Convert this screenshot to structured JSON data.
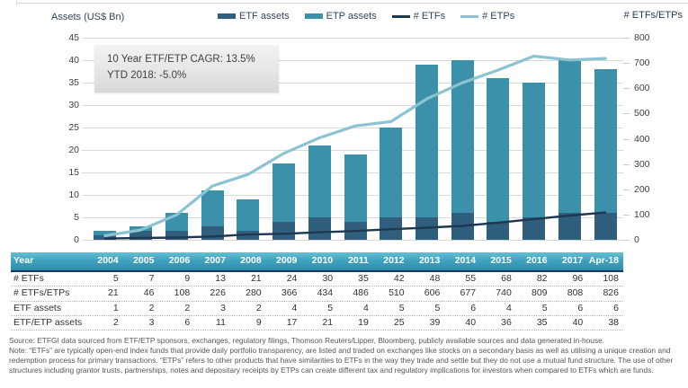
{
  "header": {
    "left_axis_title": "Assets (US$ Bn)",
    "right_axis_title": "# ETFs/ETPs",
    "legend": [
      {
        "label": "ETF assets",
        "type": "bar",
        "color": "#305f7e"
      },
      {
        "label": "ETP assets",
        "type": "bar",
        "color": "#3b91a9"
      },
      {
        "label": "# ETFs",
        "type": "line",
        "color": "#1e3852"
      },
      {
        "label": "# ETPs",
        "type": "line",
        "color": "#8cc3d2"
      }
    ]
  },
  "annotation": {
    "line1": "10 Year ETF/ETP CAGR: 13.5%",
    "line2": "YTD 2018: -5.0%"
  },
  "chart_data": {
    "type": "combo-stacked-bar-and-line",
    "title": "",
    "categories": [
      "2004",
      "2005",
      "2006",
      "2007",
      "2008",
      "2009",
      "2010",
      "2011",
      "2012",
      "2013",
      "2014",
      "2015",
      "2016",
      "2017",
      "Apr-18"
    ],
    "left_axis": {
      "title": "Assets (US$ Bn)",
      "min": 0,
      "max": 45,
      "step": 5
    },
    "right_axis": {
      "title": "# ETFs/ETPs",
      "min": 0,
      "max": 800,
      "step": 100
    },
    "grid": "horizontal-on",
    "legend_position": "top",
    "series": [
      {
        "name": "ETF assets",
        "type": "bar",
        "axis": "left",
        "stack": true,
        "color": "#305f7e",
        "values": [
          1,
          2,
          2,
          3,
          2,
          4,
          5,
          4,
          5,
          5,
          6,
          4,
          5,
          6,
          6
        ]
      },
      {
        "name": "ETP assets",
        "type": "bar",
        "axis": "left",
        "stack": true,
        "color": "#3b91a9",
        "values": [
          1,
          1,
          4,
          8,
          7,
          13,
          16,
          15,
          20,
          34,
          34,
          32,
          30,
          34,
          32
        ]
      },
      {
        "name": "# ETFs",
        "type": "line",
        "axis": "right",
        "color": "#1e3852",
        "width": 2.4,
        "values": [
          5,
          7,
          9,
          13,
          21,
          24,
          30,
          35,
          42,
          48,
          55,
          68,
          82,
          96,
          108
        ]
      },
      {
        "name": "# ETPs",
        "type": "line",
        "axis": "right",
        "color": "#8cc3d2",
        "width": 3.2,
        "values": [
          16,
          39,
          99,
          213,
          259,
          342,
          404,
          451,
          468,
          558,
          622,
          672,
          727,
          712,
          718
        ]
      }
    ],
    "stacked_bar_totals_note": "ETF assets + ETP assets = ETF/ETP assets totals shown in table",
    "bar_totals": [
      2,
      3,
      6,
      11,
      9,
      17,
      21,
      19,
      25,
      39,
      40,
      36,
      35,
      40,
      38
    ]
  },
  "table": {
    "header": [
      "Year",
      "2004",
      "2005",
      "2006",
      "2007",
      "2008",
      "2009",
      "2010",
      "2011",
      "2012",
      "2013",
      "2014",
      "2015",
      "2016",
      "2017",
      "Apr-18"
    ],
    "rows": [
      {
        "label": "# ETFs",
        "values": [
          5,
          7,
          9,
          13,
          21,
          24,
          30,
          35,
          42,
          48,
          55,
          68,
          82,
          96,
          108
        ]
      },
      {
        "label": "# ETFs/ETPs",
        "values": [
          21,
          46,
          108,
          226,
          280,
          366,
          434,
          486,
          510,
          606,
          677,
          740,
          809,
          808,
          826
        ]
      },
      {
        "label": "ETF assets",
        "values": [
          1,
          2,
          2,
          3,
          2,
          4,
          5,
          4,
          5,
          5,
          6,
          4,
          5,
          6,
          6
        ]
      },
      {
        "label": "ETF/ETP assets",
        "values": [
          2,
          3,
          6,
          11,
          9,
          17,
          21,
          19,
          25,
          39,
          40,
          36,
          35,
          40,
          38
        ]
      }
    ]
  },
  "footer": {
    "source": "Source: ETFGI data sourced from ETF/ETP sponsors, exchanges, regulatory filings, Thomson Reuters/Lipper, Bloomberg, publicly available sources and data generated in-house.",
    "note": "Note: “ETFs” are typically open-end index funds that provide daily portfolio transparency, are listed and traded on exchanges like stocks on a secondary basis as well as utilising a unique creation and redemption process for primary transactions. “ETPs” refers to other products that have similarities to ETFs in the way they trade and settle but they do not use a mutual fund structure. The use of other structures including grantor trusts, partnerships, notes and depositary receipts by ETPs can create different tax and regulatory implications for investors when compared to ETFs which are funds."
  },
  "colors": {
    "etf_bar": "#305f7e",
    "etp_bar": "#3b91a9",
    "etfs_line": "#1e3852",
    "etps_line": "#8cc3d2",
    "table_header_top": "#66bed3",
    "table_header_bottom": "#2e8eab",
    "table_header_border": "#17375e",
    "gridline": "#d9d9d9",
    "footer_text": "#575757"
  }
}
